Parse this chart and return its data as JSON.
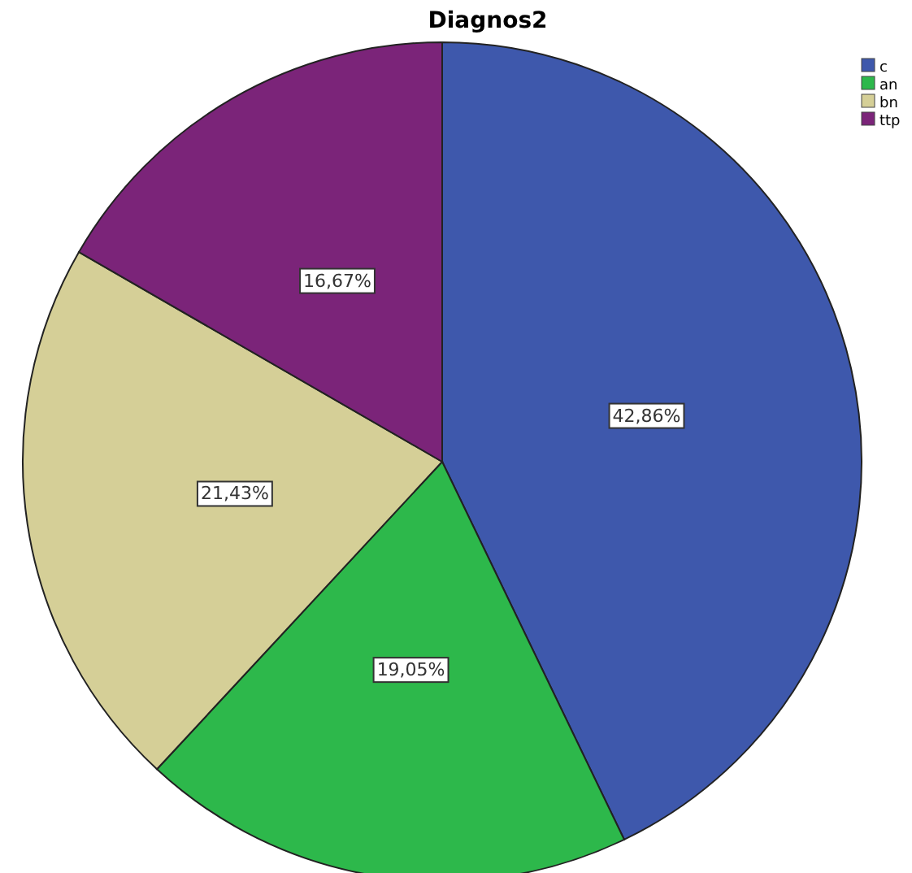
{
  "chart_data": {
    "type": "pie",
    "title": "Diagnos2",
    "categories": [
      "c",
      "an",
      "bn",
      "ttp"
    ],
    "values": [
      42.86,
      19.05,
      21.43,
      16.67
    ],
    "value_labels": [
      "42,86%",
      "19,05%",
      "21,43%",
      "16,67%"
    ],
    "colors": [
      "#3e58ac",
      "#2db84b",
      "#d5cf97",
      "#7b2479"
    ],
    "legend": "top right"
  }
}
